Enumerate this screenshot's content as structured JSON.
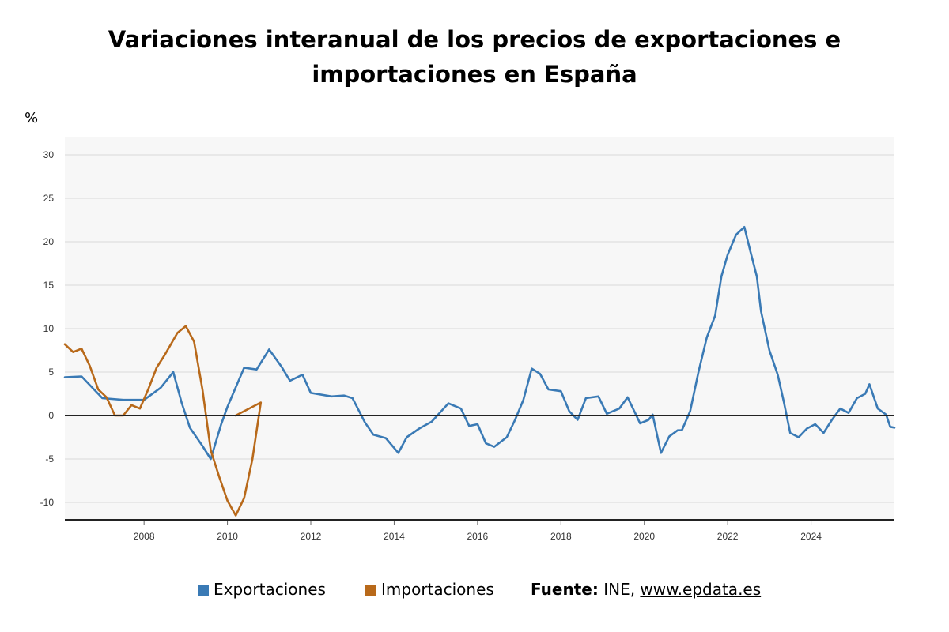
{
  "title": "Variaciones interanual de los precios de exportaciones e importaciones en España",
  "unit_label": "%",
  "legend": [
    {
      "label": "Exportaciones",
      "color": "#3a7ab5"
    },
    {
      "label": "Importaciones",
      "color": "#b8691a"
    }
  ],
  "source": {
    "prefix": "Fuente:",
    "text": "INE,",
    "link": "www.epdata.es"
  },
  "colors": {
    "plot_background": "#f7f7f7",
    "grid": "#d9d9d9",
    "zero_line": "#222222",
    "axis": "#222222"
  },
  "chart_data": {
    "type": "line",
    "xlabel": "",
    "ylabel": "%",
    "grid": true,
    "legend_position": "bottom",
    "ylim": [
      -12,
      32
    ],
    "xlim": [
      2006.1,
      2026.0
    ],
    "y_ticks": [
      -10,
      -5,
      0,
      5,
      10,
      15,
      20,
      25,
      30
    ],
    "x_ticks": [
      2008,
      2010,
      2012,
      2014,
      2016,
      2018,
      2020,
      2022,
      2024
    ],
    "series": [
      {
        "name": "Exportaciones",
        "color": "#3a7ab5",
        "points": [
          [
            2006.1,
            4.4
          ],
          [
            2006.5,
            4.5
          ],
          [
            2007.0,
            2.0
          ],
          [
            2007.5,
            1.8
          ],
          [
            2008.0,
            1.8
          ],
          [
            2008.4,
            3.2
          ],
          [
            2008.7,
            5.0
          ],
          [
            2008.9,
            1.5
          ],
          [
            2009.1,
            -1.4
          ],
          [
            2009.4,
            -3.5
          ],
          [
            2009.6,
            -5.0
          ],
          [
            2009.85,
            -1.0
          ],
          [
            2010.0,
            1.0
          ],
          [
            2010.4,
            5.5
          ],
          [
            2010.7,
            5.3
          ],
          [
            2011.0,
            7.6
          ],
          [
            2011.3,
            5.6
          ],
          [
            2011.5,
            4.0
          ],
          [
            2011.8,
            4.7
          ],
          [
            2012.0,
            2.6
          ],
          [
            2012.5,
            2.2
          ],
          [
            2012.8,
            2.3
          ],
          [
            2013.0,
            2.0
          ],
          [
            2013.3,
            -0.8
          ],
          [
            2013.5,
            -2.2
          ],
          [
            2013.8,
            -2.6
          ],
          [
            2014.1,
            -4.3
          ],
          [
            2014.3,
            -2.5
          ],
          [
            2014.6,
            -1.5
          ],
          [
            2014.9,
            -0.7
          ],
          [
            2015.3,
            1.4
          ],
          [
            2015.6,
            0.8
          ],
          [
            2015.8,
            -1.2
          ],
          [
            2016.0,
            -1.0
          ],
          [
            2016.2,
            -3.2
          ],
          [
            2016.4,
            -3.6
          ],
          [
            2016.7,
            -2.5
          ],
          [
            2016.9,
            -0.5
          ],
          [
            2017.1,
            1.8
          ],
          [
            2017.3,
            5.4
          ],
          [
            2017.5,
            4.8
          ],
          [
            2017.7,
            3.0
          ],
          [
            2018.0,
            2.8
          ],
          [
            2018.2,
            0.5
          ],
          [
            2018.4,
            -0.5
          ],
          [
            2018.6,
            2.0
          ],
          [
            2018.9,
            2.2
          ],
          [
            2019.1,
            0.2
          ],
          [
            2019.4,
            0.8
          ],
          [
            2019.6,
            2.1
          ],
          [
            2019.9,
            -0.9
          ],
          [
            2020.1,
            -0.5
          ],
          [
            2020.2,
            0.1
          ],
          [
            2020.4,
            -4.3
          ],
          [
            2020.6,
            -2.4
          ],
          [
            2020.8,
            -1.7
          ],
          [
            2020.9,
            -1.7
          ],
          [
            2021.1,
            0.5
          ],
          [
            2021.3,
            5.0
          ],
          [
            2021.5,
            9.0
          ],
          [
            2021.7,
            11.5
          ],
          [
            2021.85,
            16.0
          ],
          [
            2022.0,
            18.5
          ],
          [
            2022.2,
            20.8
          ],
          [
            2022.4,
            21.7
          ],
          [
            2022.55,
            18.8
          ],
          [
            2022.7,
            16.0
          ],
          [
            2022.8,
            12.0
          ],
          [
            2023.0,
            7.5
          ],
          [
            2023.2,
            4.7
          ],
          [
            2023.35,
            1.5
          ],
          [
            2023.5,
            -2.0
          ],
          [
            2023.7,
            -2.5
          ],
          [
            2023.9,
            -1.5
          ],
          [
            2024.1,
            -1.0
          ],
          [
            2024.3,
            -2.0
          ],
          [
            2024.5,
            -0.5
          ],
          [
            2024.7,
            0.8
          ],
          [
            2024.9,
            0.3
          ],
          [
            2025.1,
            2.0
          ],
          [
            2025.3,
            2.5
          ],
          [
            2025.4,
            3.6
          ],
          [
            2025.6,
            0.8
          ],
          [
            2025.8,
            0.1
          ],
          [
            2025.9,
            -1.3
          ],
          [
            2026.0,
            -1.4
          ]
        ]
      },
      {
        "name": "Importaciones",
        "color": "#b8691a",
        "points": [
          [
            2006.1,
            8.2
          ],
          [
            2006.3,
            7.3
          ],
          [
            2006.5,
            7.7
          ],
          [
            2006.7,
            5.7
          ],
          [
            2006.9,
            3.0
          ],
          [
            2007.1,
            2.1
          ],
          [
            2007.3,
            0.0
          ],
          [
            2007.5,
            0.0
          ],
          [
            2007.7,
            1.2
          ],
          [
            2007.9,
            0.8
          ],
          [
            2008.1,
            3.0
          ],
          [
            2008.3,
            5.5
          ],
          [
            2008.5,
            7.0
          ],
          [
            2008.8,
            9.5
          ],
          [
            2009.0,
            10.3
          ],
          [
            2009.2,
            8.5
          ],
          [
            2009.4,
            3.0
          ],
          [
            2009.6,
            -4.0
          ],
          [
            2009.8,
            -7.0
          ],
          [
            2010.0,
            -9.8
          ],
          [
            2010.2,
            -11.5
          ],
          [
            2010.4,
            -9.5
          ],
          [
            2010.6,
            -5.0
          ],
          [
            2010.8,
            1.5
          ],
          [
            2010.2,
            0.0
          ]
        ]
      }
    ]
  }
}
